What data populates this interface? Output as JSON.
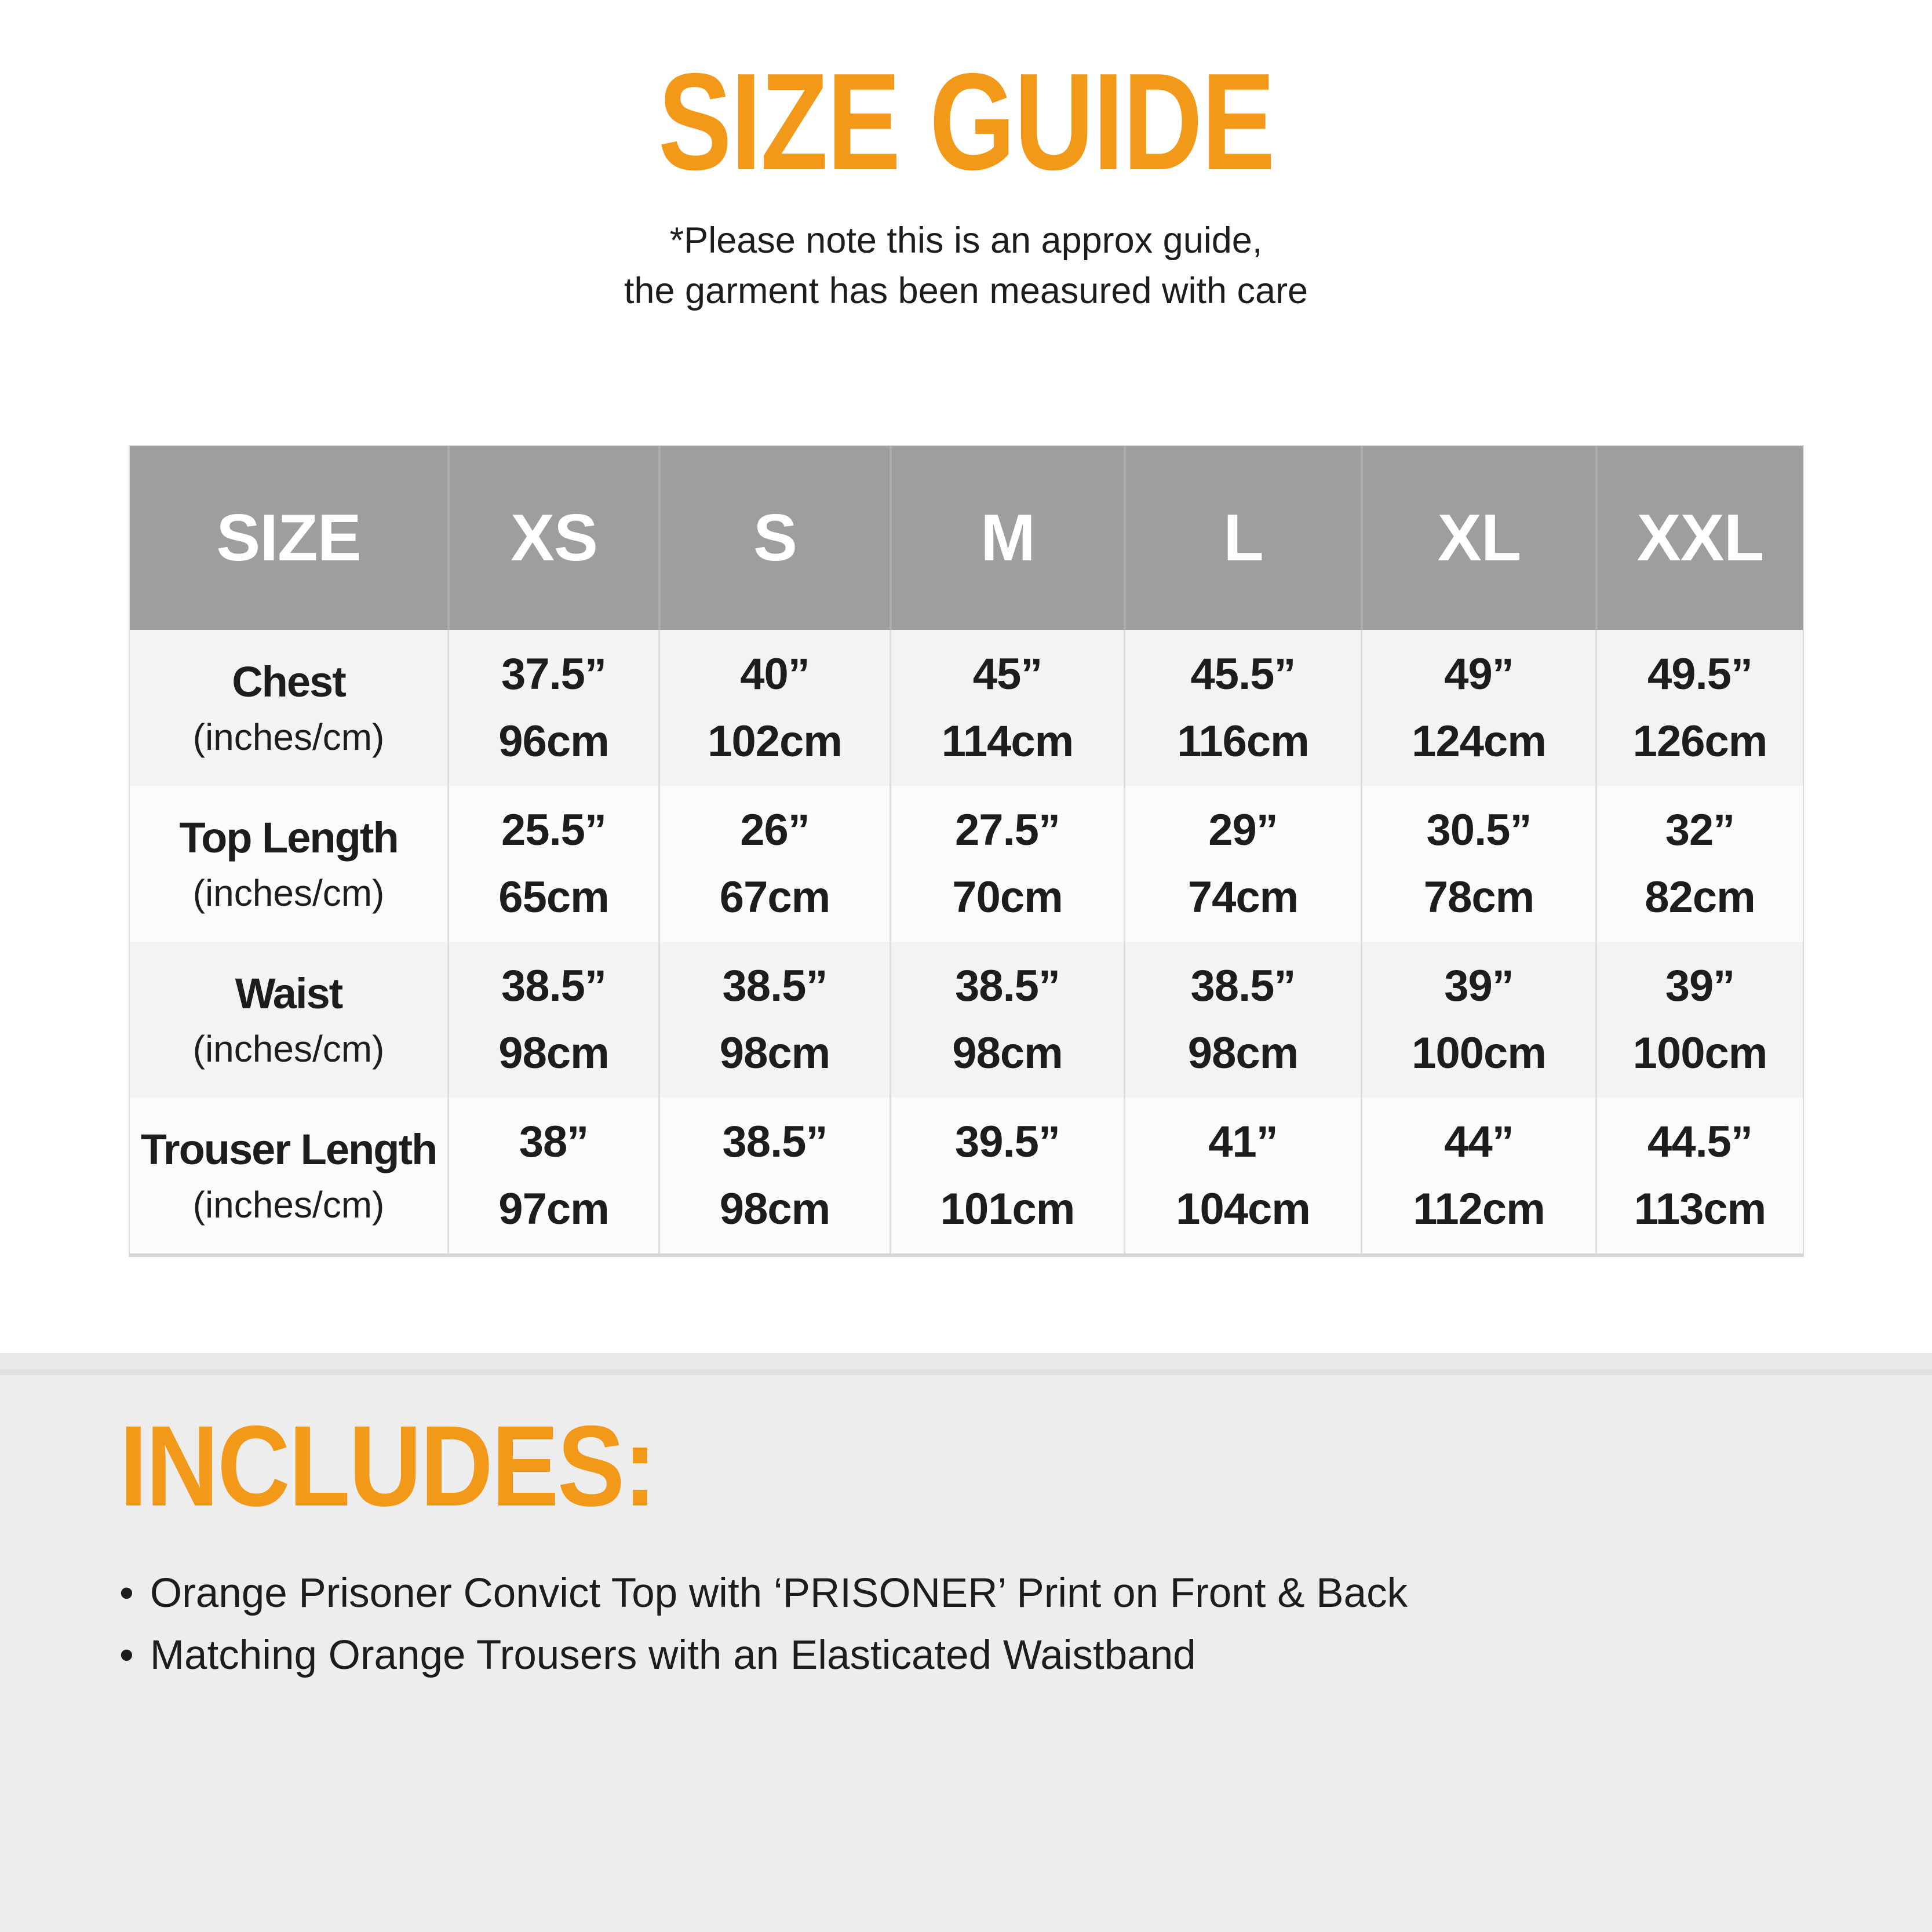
{
  "colors": {
    "accent": "#F2991A",
    "table_header_bg": "#9E9E9E",
    "row_gray": "#F3F3F3",
    "row_white": "#FBFBFB",
    "bottom_section_bg": "#EDEDED"
  },
  "title": "SIZE GUIDE",
  "note": {
    "line1": "*Please note this is an approx guide,",
    "line2": "the garment has been measured with care"
  },
  "table": {
    "columns": [
      "SIZE",
      "XS",
      "S",
      "M",
      "L",
      "XL",
      "XXL"
    ],
    "rows": [
      {
        "label": "Chest",
        "unit": "(inches/cm)",
        "cells": [
          {
            "in": "37.5”",
            "cm": "96cm"
          },
          {
            "in": "40”",
            "cm": "102cm"
          },
          {
            "in": "45”",
            "cm": "114cm"
          },
          {
            "in": "45.5”",
            "cm": "116cm"
          },
          {
            "in": "49”",
            "cm": "124cm"
          },
          {
            "in": "49.5”",
            "cm": "126cm"
          }
        ]
      },
      {
        "label": "Top Length",
        "unit": "(inches/cm)",
        "cells": [
          {
            "in": "25.5”",
            "cm": "65cm"
          },
          {
            "in": "26”",
            "cm": "67cm"
          },
          {
            "in": "27.5”",
            "cm": "70cm"
          },
          {
            "in": "29”",
            "cm": "74cm"
          },
          {
            "in": "30.5”",
            "cm": "78cm"
          },
          {
            "in": "32”",
            "cm": "82cm"
          }
        ]
      },
      {
        "label": "Waist",
        "unit": "(inches/cm)",
        "cells": [
          {
            "in": "38.5”",
            "cm": "98cm"
          },
          {
            "in": "38.5”",
            "cm": "98cm"
          },
          {
            "in": "38.5”",
            "cm": "98cm"
          },
          {
            "in": "38.5”",
            "cm": "98cm"
          },
          {
            "in": "39”",
            "cm": "100cm"
          },
          {
            "in": "39”",
            "cm": "100cm"
          }
        ]
      },
      {
        "label": "Trouser Length",
        "unit": "(inches/cm)",
        "cells": [
          {
            "in": "38”",
            "cm": "97cm"
          },
          {
            "in": "38.5”",
            "cm": "98cm"
          },
          {
            "in": "39.5”",
            "cm": "101cm"
          },
          {
            "in": "41”",
            "cm": "104cm"
          },
          {
            "in": "44”",
            "cm": "112cm"
          },
          {
            "in": "44.5”",
            "cm": "113cm"
          }
        ]
      }
    ]
  },
  "includes": {
    "heading": "INCLUDES:",
    "bullet": "•",
    "items": [
      "Orange Prisoner Convict Top with ‘PRISONER’ Print on Front & Back",
      "Matching Orange Trousers with an Elasticated Waistband"
    ]
  }
}
